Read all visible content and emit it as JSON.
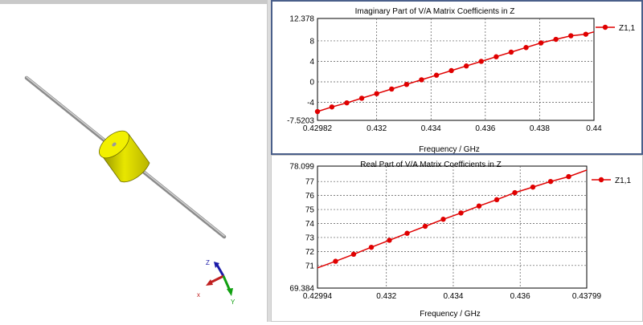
{
  "left_pane": {
    "title": "",
    "axes_gizmo": {
      "z_label": "Z",
      "x_label": "x",
      "y_label": "Y"
    }
  },
  "chart_data": [
    {
      "type": "line",
      "title": "Imaginary Part of V/A Matrix Coefficients in Z",
      "xlabel": "Frequency / GHz",
      "ylabel": "",
      "xlim": [
        0.42982,
        0.44
      ],
      "ylim": [
        -7.5203,
        12.378
      ],
      "xticks": [
        0.42982,
        0.432,
        0.434,
        0.436,
        0.438,
        0.44
      ],
      "xtick_labels": [
        "0.42982",
        "0.432",
        "0.434",
        "0.436",
        "0.438",
        "0.44"
      ],
      "yticks": [
        12.378,
        8,
        4,
        0,
        -4,
        -7.5203
      ],
      "ytick_labels": [
        "12.378",
        "8",
        "4",
        "0",
        "-4",
        "-7.5203"
      ],
      "grid": true,
      "legend_position": "right",
      "series": [
        {
          "name": "Z1,1",
          "color": "#e00000",
          "x": [
            0.42982,
            0.43035,
            0.4309,
            0.43145,
            0.432,
            0.43255,
            0.4331,
            0.43365,
            0.4342,
            0.43475,
            0.4353,
            0.43585,
            0.4364,
            0.43695,
            0.4375,
            0.43805,
            0.4386,
            0.43915,
            0.4397
          ],
          "y": [
            -5.8,
            -4.9,
            -4.1,
            -3.2,
            -2.3,
            -1.4,
            -0.5,
            0.4,
            1.3,
            2.2,
            3.1,
            4.0,
            4.9,
            5.8,
            6.7,
            7.6,
            8.3,
            9.0,
            9.3
          ]
        }
      ]
    },
    {
      "type": "line",
      "title": "Real Part of V/A Matrix Coefficients in Z",
      "xlabel": "Frequency / GHz",
      "ylabel": "",
      "xlim": [
        0.42994,
        0.43799
      ],
      "ylim": [
        69.384,
        78.099
      ],
      "xticks": [
        0.42994,
        0.432,
        0.434,
        0.436,
        0.43799
      ],
      "xtick_labels": [
        "0.42994",
        "0.432",
        "0.434",
        "0.436",
        "0.43799"
      ],
      "yticks": [
        78.099,
        77,
        76,
        75,
        74,
        73,
        72,
        71,
        69.384
      ],
      "ytick_labels": [
        "78.099",
        "77",
        "76",
        "75",
        "74",
        "73",
        "72",
        "71",
        "69.384"
      ],
      "grid": true,
      "legend_position": "right",
      "series": [
        {
          "name": "Z1,1",
          "color": "#e00000",
          "x": [
            0.43048,
            0.43102,
            0.43155,
            0.43209,
            0.43262,
            0.43316,
            0.4337,
            0.43423,
            0.43477,
            0.4353,
            0.43584,
            0.43638,
            0.43691,
            0.43745
          ],
          "y": [
            71.3,
            71.8,
            72.3,
            72.8,
            73.3,
            73.8,
            74.3,
            74.75,
            75.25,
            75.7,
            76.2,
            76.6,
            77.0,
            77.35
          ]
        }
      ]
    }
  ]
}
